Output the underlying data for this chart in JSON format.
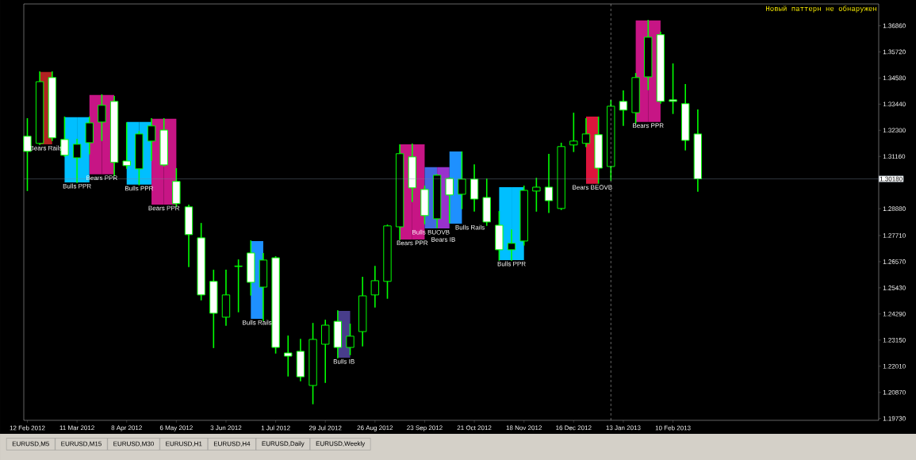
{
  "chart_data": {
    "type": "candlestick",
    "annotations": [
      "Новый паттерн не обнаружен",
      "EURUSD,M5",
      "EURUSD,M15",
      "EURUSD,M30",
      "EURUSD,H1",
      "EURUSD,H4",
      "EURUSD,Daily",
      "EURUSD,Weekly",
      {
        "text": "Bears Rails",
        "x": "2012-02-22T12:00",
        "y": 1.3169
      },
      {
        "text": "Bulls PPR",
        "x": "2012-03-11",
        "y": 1.3003
      },
      {
        "text": "Bears PPR",
        "x": "2012-03-25",
        "y": 1.3038
      },
      {
        "text": "Bulls PPR",
        "x": "2012-04-15",
        "y": 1.2993
      },
      {
        "text": "Bears PPR",
        "x": "2012-04-29",
        "y": 1.2906
      },
      {
        "text": "Bulls Rails",
        "x": "2012-06-20T12:00",
        "y": 1.2408
      },
      {
        "text": "Bulls IB",
        "x": "2012-08-08T12:00",
        "y": 1.2238
      },
      {
        "text": "Bears PPR",
        "x": "2012-09-16",
        "y": 1.2754
      },
      {
        "text": "Bulls BUOVB",
        "x": "2012-09-26T12:00",
        "y": 1.2802
      },
      {
        "text": "Bears IB",
        "x": "2012-10-03T12:00",
        "y": 1.2802
      },
      {
        "text": "Bulls Rails",
        "x": "2012-10-10T12:00",
        "y": 1.2823
      },
      {
        "text": "Bulls PPR",
        "x": "2012-11-11",
        "y": 1.2664
      },
      {
        "text": "Bears BEOVB",
        "x": "2012-12-26T12:00",
        "y": 1.2997
      },
      {
        "text": "Bears PPR",
        "x": "2013-01-27",
        "y": 1.3266
      }
    ],
    "series": [
      {
        "type": "bar",
        "x": [
          "2012-02-22T12:00",
          "2012-03-07T12:00",
          "2012-03-14T12:00",
          "2012-03-21T12:00",
          "2012-03-28T12:00",
          "2012-04-11T12:00",
          "2012-04-18T12:00",
          "2012-04-25T12:00",
          "2012-05-02T12:00",
          "2012-06-20T12:00",
          "2012-08-08T12:00",
          "2012-09-12T12:00",
          "2012-09-19T12:00",
          "2012-09-26T12:00",
          "2012-10-03T12:00",
          "2012-10-10T12:00",
          "2012-11-07T12:00",
          "2012-11-14T12:00",
          "2012-12-26T12:00",
          "2013-01-23T12:00",
          "2013-01-30T12:00"
        ],
        "base": [
          1.3169,
          1.3003,
          1.3003,
          1.3038,
          1.3038,
          1.2993,
          1.2993,
          1.2906,
          1.2906,
          1.2408,
          1.2238,
          1.2754,
          1.2754,
          1.2802,
          1.2802,
          1.2823,
          1.2664,
          1.2664,
          1.2997,
          1.3266,
          1.3266
        ],
        "values": [
          0.0315,
          0.0284,
          0.0284,
          0.0346,
          0.0346,
          0.0273,
          0.0273,
          0.0374,
          0.0374,
          0.0339,
          0.0204,
          0.0415,
          0.0415,
          0.0267,
          0.0267,
          0.0315,
          0.0318,
          0.0318,
          0.0293,
          0.0443,
          0.0443
        ],
        "colors": [
          "#b22222",
          "#00bfff",
          "#00bfff",
          "#c71585",
          "#c71585",
          "#00bfff",
          "#00bfff",
          "#c71585",
          "#c71585",
          "#1e90ff",
          "#483d8b",
          "#c71585",
          "#c71585",
          "#4169e1",
          "#9932cc",
          "#1e90ff",
          "#00bfff",
          "#00bfff",
          "#dc143c",
          "#c71585",
          "#c71585"
        ]
      },
      {
        "type": "candlestick",
        "color": "#00ff00",
        "x": [
          "2012-02-12",
          "2012-02-19",
          "2012-02-26",
          "2012-03-04",
          "2012-03-11",
          "2012-03-18",
          "2012-03-25",
          "2012-04-01",
          "2012-04-08",
          "2012-04-15",
          "2012-04-22",
          "2012-04-29",
          "2012-05-06",
          "2012-05-13",
          "2012-05-20",
          "2012-05-27",
          "2012-06-03",
          "2012-06-10",
          "2012-06-17",
          "2012-06-24",
          "2012-07-01",
          "2012-07-08",
          "2012-07-15",
          "2012-07-22",
          "2012-07-29",
          "2012-08-05",
          "2012-08-12",
          "2012-08-19",
          "2012-08-26",
          "2012-09-02",
          "2012-09-09",
          "2012-09-16",
          "2012-09-23",
          "2012-09-30",
          "2012-10-07",
          "2012-10-14",
          "2012-10-21",
          "2012-10-28",
          "2012-11-04",
          "2012-11-11",
          "2012-11-18",
          "2012-11-25",
          "2012-12-02",
          "2012-12-09",
          "2012-12-16",
          "2012-12-23",
          "2012-12-30",
          "2013-01-06",
          "2013-01-13",
          "2013-01-20",
          "2013-01-27",
          "2013-02-03",
          "2013-02-10",
          "2013-02-17",
          "2013-02-24"
        ],
        "ohlc": [
          [
            1.3204,
            1.328,
            1.2968,
            1.3138
          ],
          [
            1.3173,
            1.3484,
            1.3169,
            1.3442
          ],
          [
            1.346,
            1.3484,
            1.3186,
            1.3197
          ],
          [
            1.319,
            1.3287,
            1.3117,
            1.3121
          ],
          [
            1.311,
            1.319,
            1.3003,
            1.3169
          ],
          [
            1.3176,
            1.3287,
            1.3128,
            1.3262
          ],
          [
            1.3266,
            1.3384,
            1.3186,
            1.3339
          ],
          [
            1.3356,
            1.3377,
            1.3034,
            1.309
          ],
          [
            1.3096,
            1.3262,
            1.3065,
            1.3076
          ],
          [
            1.3062,
            1.3224,
            1.2993,
            1.3214
          ],
          [
            1.3183,
            1.328,
            1.31,
            1.3249
          ],
          [
            1.3231,
            1.328,
            1.3075,
            1.3079
          ],
          [
            1.3007,
            1.3062,
            1.2899,
            1.291
          ],
          [
            1.2896,
            1.2903,
            1.2636,
            1.2775
          ],
          [
            1.2761,
            1.2823,
            1.2491,
            1.2512
          ],
          [
            1.2571,
            1.2619,
            1.2283,
            1.2432
          ],
          [
            1.2415,
            1.2619,
            1.238,
            1.2512
          ],
          [
            1.2636,
            1.2664,
            1.2439,
            1.2638
          ],
          [
            1.2695,
            1.2747,
            1.2512,
            1.2567
          ],
          [
            1.2546,
            1.2692,
            1.2401,
            1.2664
          ],
          [
            1.2674,
            1.2678,
            1.2259,
            1.2283
          ],
          [
            1.2259,
            1.2332,
            1.2159,
            1.2245
          ],
          [
            1.2266,
            1.2318,
            1.2138,
            1.2155
          ],
          [
            1.2117,
            1.2387,
            1.2038,
            1.2318
          ],
          [
            1.2297,
            1.2401,
            1.2131,
            1.238
          ],
          [
            1.2397,
            1.2442,
            1.2238,
            1.2283
          ],
          [
            1.2283,
            1.2384,
            1.2252,
            1.2332
          ],
          [
            1.2352,
            1.2588,
            1.229,
            1.2508
          ],
          [
            1.2512,
            1.2636,
            1.246,
            1.2574
          ],
          [
            1.2571,
            1.2816,
            1.2498,
            1.2813
          ],
          [
            1.2809,
            1.3166,
            1.2754,
            1.3128
          ],
          [
            1.3114,
            1.3169,
            1.292,
            1.2979
          ],
          [
            1.2972,
            1.2986,
            1.2823,
            1.2858
          ],
          [
            1.2844,
            1.3036,
            1.2806,
            1.3034
          ],
          [
            1.302,
            1.3022,
            1.2827,
            1.2948
          ],
          [
            1.2951,
            1.3135,
            1.2889,
            1.3017
          ],
          [
            1.3017,
            1.3079,
            1.2878,
            1.293
          ],
          [
            1.2937,
            1.3017,
            1.2816,
            1.283
          ],
          [
            1.2816,
            1.2875,
            1.2664,
            1.2709
          ],
          [
            1.2709,
            1.2795,
            1.2664,
            1.2737
          ],
          [
            1.2747,
            1.2986,
            1.273,
            1.2968
          ],
          [
            1.2965,
            1.302,
            1.2878,
            1.2982
          ],
          [
            1.2982,
            1.3124,
            1.2872,
            1.2923
          ],
          [
            1.2889,
            1.3173,
            1.2885,
            1.3159
          ],
          [
            1.3166,
            1.3304,
            1.3138,
            1.3183
          ],
          [
            1.3173,
            1.328,
            1.3159,
            1.3214
          ],
          [
            1.3211,
            1.3287,
            1.3,
            1.3065
          ],
          [
            1.3072,
            1.3359,
            1.3013,
            1.3335
          ],
          [
            1.3356,
            1.3401,
            1.3252,
            1.3318
          ],
          [
            1.3307,
            1.3477,
            1.3262,
            1.346
          ],
          [
            1.3463,
            1.3709,
            1.3408,
            1.3636
          ],
          [
            1.3647,
            1.3657,
            1.3349,
            1.3356
          ],
          [
            1.3363,
            1.3519,
            1.3304,
            1.3356
          ],
          [
            1.3346,
            1.3429,
            1.3145,
            1.3186
          ],
          [
            1.3214,
            1.3318,
            1.2965,
            1.3018
          ]
        ]
      }
    ],
    "xlim": [
      "2012-02-10",
      "2013-06-06"
    ],
    "ylim": [
      1.1965,
      1.3781
    ],
    "xticks": [
      {
        "value": "2012-02-12",
        "label": "12 Feb 2012"
      },
      {
        "value": "2012-03-11",
        "label": "11 Mar 2012"
      },
      {
        "value": "2012-04-08",
        "label": "8 Apr 2012"
      },
      {
        "value": "2012-05-06",
        "label": "6 May 2012"
      },
      {
        "value": "2012-06-03",
        "label": "3 Jun 2012"
      },
      {
        "value": "2012-07-01",
        "label": "1 Jul 2012"
      },
      {
        "value": "2012-07-29",
        "label": "29 Jul 2012"
      },
      {
        "value": "2012-08-26",
        "label": "26 Aug 2012"
      },
      {
        "value": "2012-09-23",
        "label": "23 Sep 2012"
      },
      {
        "value": "2012-10-21",
        "label": "21 Oct 2012"
      },
      {
        "value": "2012-11-18",
        "label": "18 Nov 2012"
      },
      {
        "value": "2012-12-16",
        "label": "16 Dec 2012"
      },
      {
        "value": "2013-01-13",
        "label": "13 Jan 2013"
      },
      {
        "value": "2013-02-10",
        "label": "10 Feb 2013"
      }
    ],
    "yticks": [
      {
        "value": 1.1973,
        "label": "1.19730"
      },
      {
        "value": 1.2087,
        "label": "1.20870"
      },
      {
        "value": 1.2201,
        "label": "1.22010"
      },
      {
        "value": 1.2315,
        "label": "1.23150"
      },
      {
        "value": 1.2429,
        "label": "1.24290"
      },
      {
        "value": 1.2543,
        "label": "1.25430"
      },
      {
        "value": 1.2657,
        "label": "1.26570"
      },
      {
        "value": 1.2771,
        "label": "1.27710"
      },
      {
        "value": 1.2888,
        "label": "1.28880"
      },
      {
        "value": 1.3116,
        "label": "1.31160"
      },
      {
        "value": 1.323,
        "label": "1.32300"
      },
      {
        "value": 1.3344,
        "label": "1.33440"
      },
      {
        "value": 1.3458,
        "label": "1.34580"
      },
      {
        "value": 1.3572,
        "label": "1.35720"
      },
      {
        "value": 1.3686,
        "label": "1.36860"
      }
    ],
    "ref_lines": [
      {
        "axis": "y",
        "value": 1.3018,
        "label": "1.30180",
        "color": "#778899"
      },
      {
        "axis": "x",
        "value": "2013-01-06",
        "color": "#ffffff",
        "line_style": "dashed"
      }
    ],
    "grid": false
  }
}
